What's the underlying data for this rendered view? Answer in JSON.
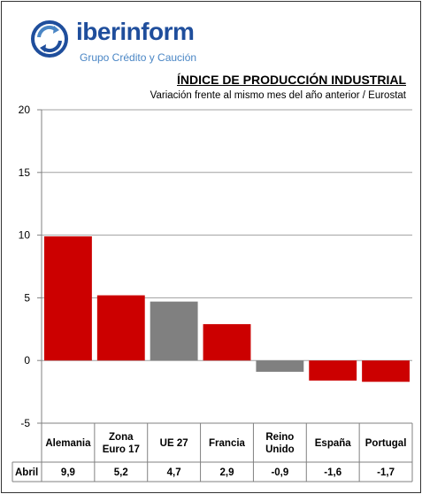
{
  "brand": {
    "name": "iberinform",
    "tagline": "Grupo Crédito y Caución"
  },
  "chart_data": {
    "type": "bar",
    "title": "ÍNDICE DE PRODUCCIÓN INDUSTRIAL",
    "subtitle": "Variación frente al mismo mes del año anterior / Eurostat",
    "categories": [
      "Alemania",
      "Zona Euro 17",
      "UE 27",
      "Francia",
      "Reino Unido",
      "España",
      "Portugal"
    ],
    "category_lines": [
      [
        "Alemania"
      ],
      [
        "Zona",
        "Euro 17"
      ],
      [
        "UE 27"
      ],
      [
        "Francia"
      ],
      [
        "Reino",
        "Unido"
      ],
      [
        "España"
      ],
      [
        "Portugal"
      ]
    ],
    "series": [
      {
        "name": "Abril",
        "values": [
          9.9,
          5.2,
          4.7,
          2.9,
          -0.9,
          -1.6,
          -1.7
        ],
        "value_labels": [
          "9,9",
          "5,2",
          "4,7",
          "2,9",
          "-0,9",
          "-1,6",
          "-1,7"
        ],
        "colors": [
          "#cc0000",
          "#cc0000",
          "#808080",
          "#cc0000",
          "#808080",
          "#cc0000",
          "#cc0000"
        ]
      }
    ],
    "ylim": [
      -5,
      20
    ],
    "yticks": [
      -5,
      0,
      5,
      10,
      15,
      20
    ],
    "grid": true,
    "legend": "none"
  }
}
